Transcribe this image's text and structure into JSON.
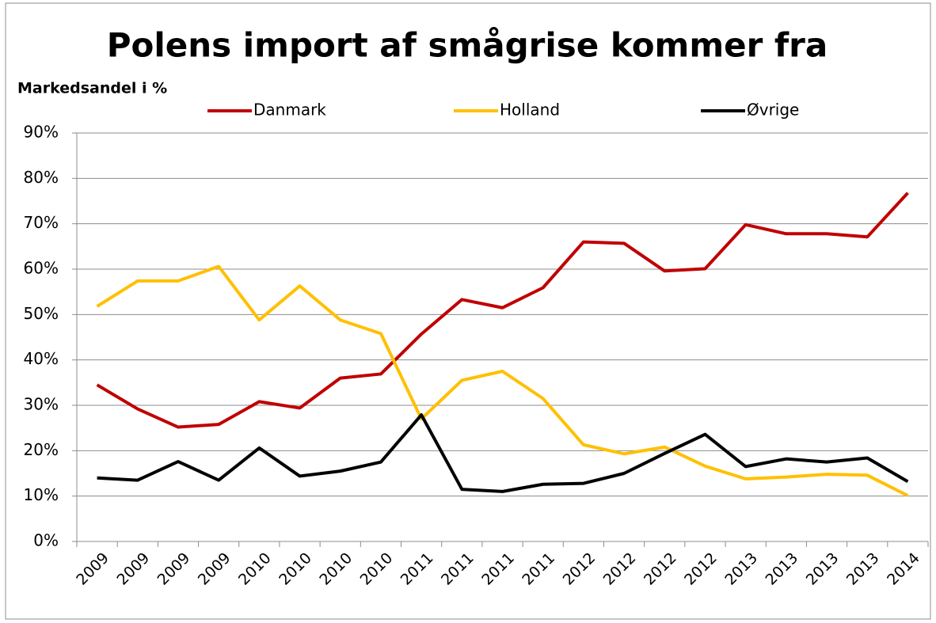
{
  "chart_data": {
    "type": "line",
    "title": "Polens import af smågrise kommer fra",
    "y_label": "Markedsandel i %",
    "categories": [
      "2009",
      "2009",
      "2009",
      "2009",
      "2010",
      "2010",
      "2010",
      "2010",
      "2011",
      "2011",
      "2011",
      "2011",
      "2012",
      "2012",
      "2012",
      "2012",
      "2013",
      "2013",
      "2013",
      "2013",
      "2014"
    ],
    "series": [
      {
        "name": "Danmark",
        "color": "#c00000",
        "values": [
          34.5,
          29.2,
          25.2,
          25.8,
          30.8,
          29.4,
          36,
          36.9,
          45.7,
          53.3,
          51.5,
          55.9,
          66,
          65.7,
          59.6,
          60.1,
          69.8,
          67.8,
          67.8,
          67.1,
          76.8
        ]
      },
      {
        "name": "Holland",
        "color": "#ffc000",
        "values": [
          51.8,
          57.4,
          57.4,
          60.6,
          48.8,
          56.3,
          48.8,
          45.8,
          27,
          35.5,
          37.5,
          31.5,
          21.3,
          19.3,
          20.8,
          16.6,
          13.8,
          14.2,
          14.8,
          14.6,
          10.1
        ]
      },
      {
        "name": "Øvrige",
        "color": "#000000",
        "values": [
          14,
          13.5,
          17.6,
          13.5,
          20.6,
          14.4,
          15.5,
          17.5,
          27.9,
          11.5,
          11,
          12.6,
          12.8,
          15,
          19.4,
          23.6,
          16.5,
          18.2,
          17.5,
          18.4,
          13.2
        ]
      }
    ],
    "ylim": [
      0,
      90
    ],
    "yticks": [
      {
        "value": 0,
        "label": "0%"
      },
      {
        "value": 10,
        "label": "10%"
      },
      {
        "value": 20,
        "label": "20%"
      },
      {
        "value": 30,
        "label": "30%"
      },
      {
        "value": 40,
        "label": "40%"
      },
      {
        "value": 50,
        "label": "50%"
      },
      {
        "value": 60,
        "label": "60%"
      },
      {
        "value": 70,
        "label": "70%"
      },
      {
        "value": 80,
        "label": "80%"
      },
      {
        "value": 90,
        "label": "90%"
      }
    ],
    "grid": true,
    "legend": "top"
  }
}
